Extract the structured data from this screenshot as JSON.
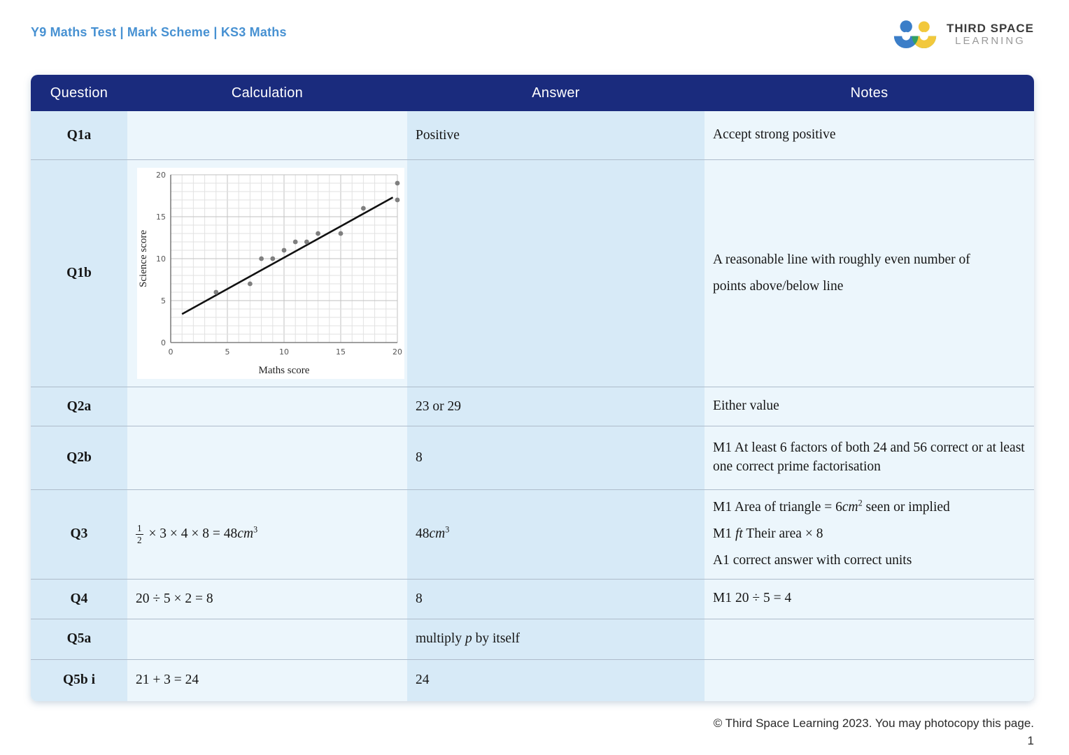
{
  "header": {
    "title": "Y9 Maths Test | Mark Scheme | KS3 Maths",
    "logo": {
      "line1": "THIRD SPACE",
      "line2": "LEARNING"
    }
  },
  "table": {
    "columns": [
      "Question",
      "Calculation",
      "Answer",
      "Notes"
    ],
    "rows": [
      {
        "id": "Q1a",
        "calc": [],
        "answer": [
          {
            "t": "txt",
            "v": "Positive"
          }
        ],
        "notes": [
          [
            {
              "t": "txt",
              "v": "Accept strong positive"
            }
          ]
        ]
      },
      {
        "id": "Q1b",
        "chart": true,
        "calc": [],
        "answer": [],
        "notes": [
          [
            {
              "t": "txt",
              "v": "A reasonable line with roughly even number of"
            }
          ],
          [
            {
              "t": "txt",
              "v": "points above/below line"
            }
          ]
        ]
      },
      {
        "id": "Q2a",
        "calc": [],
        "answer": [
          {
            "t": "txt",
            "v": "23 or 29"
          }
        ],
        "notes": [
          [
            {
              "t": "txt",
              "v": "Either value"
            }
          ]
        ]
      },
      {
        "id": "Q2b",
        "calc": [],
        "answer": [
          {
            "t": "txt",
            "v": "8"
          }
        ],
        "notes": [
          [
            {
              "t": "txt",
              "v": "M1 At least 6 factors of both 24 and 56 correct or at least one correct prime factorisation"
            }
          ]
        ]
      },
      {
        "id": "Q3",
        "calc": [
          {
            "t": "frac",
            "num": "1",
            "den": "2"
          },
          {
            "t": "txt",
            "v": " × 3 × 4 × 8 = 48"
          },
          {
            "t": "i",
            "v": "cm"
          },
          {
            "t": "sup",
            "v": "3"
          }
        ],
        "answer": [
          {
            "t": "txt",
            "v": "48"
          },
          {
            "t": "i",
            "v": "cm"
          },
          {
            "t": "sup",
            "v": "3"
          }
        ],
        "notes": [
          [
            {
              "t": "txt",
              "v": "M1 Area of triangle = 6"
            },
            {
              "t": "i",
              "v": "cm"
            },
            {
              "t": "sup",
              "v": "2"
            },
            {
              "t": "txt",
              "v": " seen or implied"
            }
          ],
          [
            {
              "t": "txt",
              "v": "M1 "
            },
            {
              "t": "i",
              "v": "ft"
            },
            {
              "t": "txt",
              "v": " Their area × 8"
            }
          ],
          [
            {
              "t": "txt",
              "v": "A1 correct answer with correct units"
            }
          ]
        ]
      },
      {
        "id": "Q4",
        "calc": [
          {
            "t": "txt",
            "v": "20 ÷ 5 × 2 = 8"
          }
        ],
        "answer": [
          {
            "t": "txt",
            "v": "8"
          }
        ],
        "notes": [
          [
            {
              "t": "txt",
              "v": "M1 20 ÷ 5 = 4"
            }
          ]
        ]
      },
      {
        "id": "Q5a",
        "calc": [],
        "answer": [
          {
            "t": "txt",
            "v": "multiply "
          },
          {
            "t": "i",
            "v": "p"
          },
          {
            "t": "txt",
            "v": " by itself"
          }
        ],
        "notes": []
      },
      {
        "id": "Q5b i",
        "calc": [
          {
            "t": "txt",
            "v": "21 + 3 = 24"
          }
        ],
        "answer": [
          {
            "t": "txt",
            "v": "24"
          }
        ],
        "notes": []
      }
    ]
  },
  "chart_data": {
    "type": "scatter",
    "title": "",
    "xlabel": "Maths score",
    "ylabel": "Science score",
    "xlim": [
      0,
      20
    ],
    "ylim": [
      0,
      20
    ],
    "xticks": [
      0,
      5,
      10,
      15,
      20
    ],
    "yticks": [
      0,
      5,
      10,
      15,
      20
    ],
    "grid": true,
    "grid_step": 1,
    "points": [
      [
        4,
        6
      ],
      [
        7,
        7
      ],
      [
        8,
        10
      ],
      [
        9,
        10
      ],
      [
        10,
        11
      ],
      [
        11,
        12
      ],
      [
        12,
        12
      ],
      [
        13,
        13
      ],
      [
        15,
        13
      ],
      [
        17,
        16
      ],
      [
        20,
        17
      ],
      [
        20,
        19
      ]
    ],
    "best_fit_line": {
      "x1": 1,
      "y1": 3.4,
      "x2": 19.6,
      "y2": 17.3
    },
    "point_color": "#7f7f7f",
    "line_color": "#111111"
  },
  "footer": {
    "copyright": "© Third Space Learning 2023. You may photocopy this page.",
    "page": "1"
  },
  "colors": {
    "header_bg": "#1a2b7d",
    "title_blue": "#4791d2",
    "col_dark": "#d7eaf7",
    "col_light": "#ecf6fc",
    "row_divider": "#aebccb",
    "logo_blue": "#3b7ec8",
    "logo_yellow": "#f2c83c",
    "logo_green": "#34a162"
  }
}
